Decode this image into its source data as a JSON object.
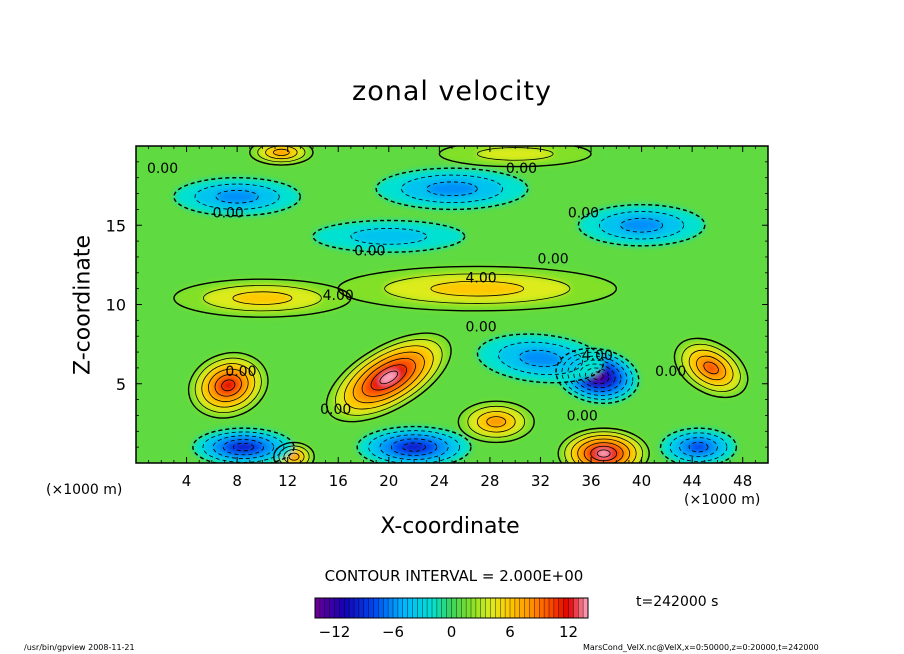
{
  "chart_data": {
    "type": "heatmap",
    "title": "zonal velocity",
    "xlabel": "X-coordinate",
    "ylabel": "Z-coordinate",
    "x_unit_left": "(×1000 m)",
    "x_unit_right": "(×1000 m)",
    "xlim": [
      0,
      50
    ],
    "ylim": [
      0,
      20
    ],
    "x_ticks": [
      4,
      8,
      12,
      16,
      20,
      24,
      28,
      32,
      36,
      40,
      44,
      48
    ],
    "y_ticks": [
      5,
      10,
      15
    ],
    "contour_interval_text": "CONTOUR INTERVAL = 2.000E+00",
    "colorbar": {
      "range": [
        -14,
        14
      ],
      "ticks": [
        -12,
        -6,
        0,
        6,
        12
      ]
    },
    "contour_labels": [
      {
        "x": 2.1,
        "y": 18.6,
        "text": "0.00"
      },
      {
        "x": 30.5,
        "y": 18.6,
        "text": "0.00"
      },
      {
        "x": 7.3,
        "y": 15.8,
        "text": "0.00"
      },
      {
        "x": 35.4,
        "y": 15.8,
        "text": "0.00"
      },
      {
        "x": 18.5,
        "y": 13.4,
        "text": "0.00"
      },
      {
        "x": 33.0,
        "y": 12.9,
        "text": "0.00"
      },
      {
        "x": 27.3,
        "y": 11.7,
        "text": "4.00"
      },
      {
        "x": 16.0,
        "y": 10.6,
        "text": "4.00"
      },
      {
        "x": 27.3,
        "y": 8.6,
        "text": "0.00"
      },
      {
        "x": 36.5,
        "y": 6.8,
        "text": "4.00"
      },
      {
        "x": 8.3,
        "y": 5.8,
        "text": "0.00"
      },
      {
        "x": 15.8,
        "y": 3.4,
        "text": "0.00"
      },
      {
        "x": 35.3,
        "y": 3.0,
        "text": "0.00"
      },
      {
        "x": 42.3,
        "y": 5.8,
        "text": "0.00"
      }
    ],
    "features": [
      {
        "x": 7.3,
        "y": 4.9,
        "value": 11,
        "rx": 3.2,
        "rz": 2.0,
        "rot": -18
      },
      {
        "x": 20.0,
        "y": 5.4,
        "value": 14,
        "rx": 5.5,
        "rz": 2.0,
        "rot": -30
      },
      {
        "x": 45.5,
        "y": 6.0,
        "value": 10,
        "rx": 2.0,
        "rz": 2.5,
        "rot": -60
      },
      {
        "x": 28.5,
        "y": 2.6,
        "value": 8,
        "rx": 3.0,
        "rz": 1.3,
        "rot": 0
      },
      {
        "x": 37.0,
        "y": 0.6,
        "value": 14,
        "rx": 3.6,
        "rz": 1.6,
        "rot": 0
      },
      {
        "x": 12.5,
        "y": 0.4,
        "value": 8,
        "rx": 1.6,
        "rz": 0.9,
        "rot": 0
      },
      {
        "x": 36.5,
        "y": 5.5,
        "value": -13,
        "rx": 3.3,
        "rz": 1.7,
        "rot": 10
      },
      {
        "x": 32.0,
        "y": 6.6,
        "value": -6,
        "rx": 5.0,
        "rz": 1.5,
        "rot": 5
      },
      {
        "x": 8.5,
        "y": 1.0,
        "value": -9,
        "rx": 4.0,
        "rz": 1.2,
        "rot": 0
      },
      {
        "x": 22.0,
        "y": 1.0,
        "value": -9,
        "rx": 4.5,
        "rz": 1.3,
        "rot": 0
      },
      {
        "x": 44.5,
        "y": 1.0,
        "value": -8,
        "rx": 3.0,
        "rz": 1.2,
        "rot": 0
      },
      {
        "x": 8.0,
        "y": 16.8,
        "value": -5,
        "rx": 5.0,
        "rz": 1.2,
        "rot": 0
      },
      {
        "x": 25.0,
        "y": 17.3,
        "value": -5,
        "rx": 6.0,
        "rz": 1.3,
        "rot": 0
      },
      {
        "x": 40.0,
        "y": 15.0,
        "value": -5,
        "rx": 5.0,
        "rz": 1.3,
        "rot": 0
      },
      {
        "x": 20.0,
        "y": 14.3,
        "value": -3,
        "rx": 6.0,
        "rz": 1.0,
        "rot": 0
      },
      {
        "x": 27.0,
        "y": 11.0,
        "value": 6,
        "rx": 11.0,
        "rz": 1.4,
        "rot": 0
      },
      {
        "x": 10.0,
        "y": 10.4,
        "value": 5,
        "rx": 7.0,
        "rz": 1.2,
        "rot": 0
      },
      {
        "x": 11.5,
        "y": 19.6,
        "value": 8,
        "rx": 2.5,
        "rz": 0.8,
        "rot": 0
      },
      {
        "x": 30.0,
        "y": 19.5,
        "value": 4,
        "rx": 6.0,
        "rz": 0.8,
        "rot": 0
      }
    ]
  },
  "time_label": "t=242000 s",
  "footer_left": "/usr/bin/gpview  2008-11-21",
  "footer_right": "MarsCond_VelX.nc@VelX,x=0:50000,z=0:20000,t=242000"
}
